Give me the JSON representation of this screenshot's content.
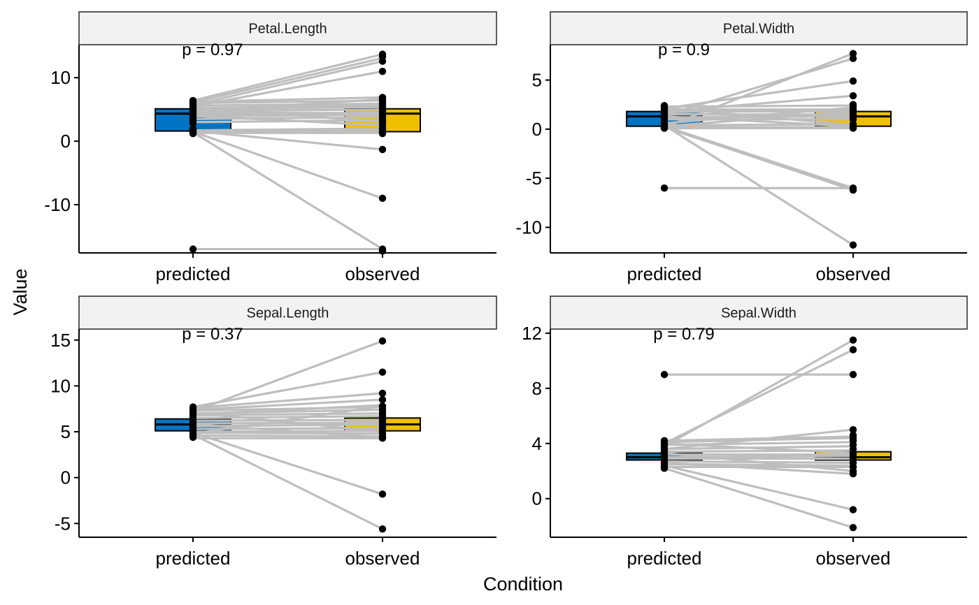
{
  "chart_data": {
    "type": "box",
    "xlabel": "Condition",
    "ylabel": "Value",
    "categories": [
      "predicted",
      "observed"
    ],
    "colors": {
      "predicted": "#0073C2",
      "observed": "#EFC000",
      "line": "#BEBEBE",
      "point": "#000000",
      "strip": "#F2F2F2"
    },
    "panels": [
      {
        "name": "Petal.Length",
        "p_label": "p = 0.97",
        "ylim": [
          -17.6,
          15.2
        ],
        "yticks": [
          10,
          0,
          -10
        ],
        "box_predicted": {
          "q1": 1.6,
          "median": 4.35,
          "q3": 5.1
        },
        "box_observed": {
          "q1": 1.5,
          "median": 4.35,
          "q3": 5.1
        },
        "lines": [
          [
            -17,
            -17
          ],
          [
            1.4,
            -17
          ],
          [
            1.5,
            -9
          ],
          [
            1.6,
            -1.3
          ],
          [
            6.4,
            13.7
          ],
          [
            6.1,
            13.1
          ],
          [
            5.7,
            12.6
          ],
          [
            5.5,
            11.0
          ],
          [
            1.3,
            1.3
          ],
          [
            1.4,
            1.5
          ],
          [
            1.5,
            1.6
          ],
          [
            1.7,
            2.0
          ],
          [
            3.0,
            3.3
          ],
          [
            3.5,
            3.8
          ],
          [
            3.9,
            4.2
          ],
          [
            4.2,
            4.5
          ],
          [
            4.5,
            4.4
          ],
          [
            4.7,
            5.0
          ],
          [
            5.0,
            5.4
          ],
          [
            5.2,
            5.6
          ],
          [
            5.6,
            5.9
          ],
          [
            6.0,
            6.4
          ],
          [
            6.2,
            6.9
          ],
          [
            4.0,
            2.5
          ],
          [
            5.4,
            3.0
          ],
          [
            4.8,
            6.6
          ]
        ],
        "points_predicted": [
          1.2,
          1.3,
          1.4,
          1.5,
          1.6,
          1.7,
          1.9,
          2.8,
          3.0,
          3.3,
          3.6,
          3.9,
          4.1,
          4.4,
          4.6,
          4.8,
          5.0,
          5.2,
          5.4,
          5.6,
          5.8,
          6.0,
          6.2,
          6.4,
          -17
        ],
        "points_observed": [
          13.7,
          13.3,
          12.6,
          11.0,
          -1.3,
          -9.0,
          -17.0,
          -17.3,
          1.2,
          1.4,
          1.6,
          2.0,
          2.5,
          3.0,
          3.3,
          3.6,
          3.9,
          4.2,
          4.4,
          4.7,
          5.0,
          5.3,
          5.6,
          5.9,
          6.3,
          6.6,
          6.9
        ]
      },
      {
        "name": "Petal.Width",
        "p_label": "p = 0.9",
        "ylim": [
          -12.6,
          8.6
        ],
        "yticks": [
          5,
          0,
          -5,
          -10
        ],
        "box_predicted": {
          "q1": 0.3,
          "median": 1.3,
          "q3": 1.8
        },
        "box_observed": {
          "q1": 0.3,
          "median": 1.3,
          "q3": 1.8
        },
        "lines": [
          [
            -6,
            -6
          ],
          [
            0.2,
            -6.2
          ],
          [
            0.3,
            -6.0
          ],
          [
            0.4,
            -11.8
          ],
          [
            0.2,
            7.7
          ],
          [
            1.4,
            7.2
          ],
          [
            2.1,
            4.9
          ],
          [
            1.8,
            3.4
          ],
          [
            0.1,
            0.1
          ],
          [
            0.2,
            0.2
          ],
          [
            0.4,
            0.5
          ],
          [
            1.0,
            1.0
          ],
          [
            1.2,
            1.3
          ],
          [
            1.5,
            1.5
          ],
          [
            1.8,
            1.8
          ],
          [
            2.0,
            2.0
          ],
          [
            2.3,
            2.4
          ],
          [
            0.6,
            2.2
          ],
          [
            2.2,
            0.4
          ],
          [
            1.6,
            1.2
          ],
          [
            0.3,
            1.8
          ],
          [
            1.3,
            0.3
          ]
        ],
        "points_predicted": [
          0.1,
          0.2,
          0.3,
          0.4,
          0.6,
          1.0,
          1.2,
          1.3,
          1.5,
          1.7,
          1.8,
          2.0,
          2.2,
          2.4,
          -6.0
        ],
        "points_observed": [
          7.7,
          7.2,
          4.9,
          3.4,
          -6.0,
          -6.2,
          -11.8,
          0.1,
          0.2,
          0.3,
          0.5,
          1.0,
          1.3,
          1.5,
          1.8,
          2.0,
          2.3,
          2.5
        ]
      },
      {
        "name": "Sepal.Length",
        "p_label": "p = 0.37",
        "ylim": [
          -6.5,
          16.2
        ],
        "yticks": [
          15,
          10,
          5,
          0,
          -5
        ],
        "box_predicted": {
          "q1": 5.1,
          "median": 5.8,
          "q3": 6.4
        },
        "box_observed": {
          "q1": 5.1,
          "median": 5.8,
          "q3": 6.5
        },
        "lines": [
          [
            4.7,
            -5.6
          ],
          [
            4.9,
            -1.8
          ],
          [
            7.2,
            14.9
          ],
          [
            7.7,
            11.5
          ],
          [
            7.6,
            9.2
          ],
          [
            7.4,
            8.5
          ],
          [
            6.9,
            7.9
          ],
          [
            4.3,
            4.3
          ],
          [
            4.6,
            4.5
          ],
          [
            4.9,
            4.8
          ],
          [
            5.0,
            5.1
          ],
          [
            5.3,
            5.4
          ],
          [
            5.6,
            5.8
          ],
          [
            5.9,
            6.0
          ],
          [
            6.2,
            6.3
          ],
          [
            6.5,
            6.7
          ],
          [
            6.8,
            7.0
          ],
          [
            7.0,
            7.4
          ],
          [
            7.3,
            7.7
          ],
          [
            5.8,
            4.4
          ],
          [
            7.1,
            5.0
          ],
          [
            4.8,
            7.8
          ]
        ],
        "points_predicted": [
          4.4,
          4.6,
          4.8,
          5.0,
          5.2,
          5.4,
          5.6,
          5.8,
          6.0,
          6.2,
          6.4,
          6.6,
          6.8,
          7.0,
          7.2,
          7.4,
          7.7
        ],
        "points_observed": [
          14.9,
          11.5,
          9.2,
          8.5,
          -1.8,
          -5.6,
          4.3,
          4.5,
          4.8,
          5.1,
          5.4,
          5.7,
          6.0,
          6.3,
          6.6,
          6.9,
          7.2,
          7.5,
          7.8
        ]
      },
      {
        "name": "Sepal.Width",
        "p_label": "p = 0.79",
        "ylim": [
          -2.8,
          12.3
        ],
        "yticks": [
          12,
          8,
          4,
          0
        ],
        "box_predicted": {
          "q1": 2.8,
          "median": 3.0,
          "q3": 3.3
        },
        "box_observed": {
          "q1": 2.8,
          "median": 3.0,
          "q3": 3.4
        },
        "lines": [
          [
            9,
            9
          ],
          [
            2.2,
            -2.1
          ],
          [
            2.4,
            -0.8
          ],
          [
            3.8,
            11.5
          ],
          [
            4.0,
            10.8
          ],
          [
            3.6,
            5.0
          ],
          [
            4.2,
            4.5
          ],
          [
            2.3,
            2.3
          ],
          [
            2.5,
            2.4
          ],
          [
            2.7,
            2.6
          ],
          [
            2.9,
            2.9
          ],
          [
            3.0,
            3.1
          ],
          [
            3.2,
            3.2
          ],
          [
            3.4,
            3.5
          ],
          [
            3.6,
            3.8
          ],
          [
            3.9,
            4.1
          ],
          [
            4.1,
            4.4
          ],
          [
            2.6,
            1.8
          ],
          [
            3.3,
            2.0
          ],
          [
            4.0,
            3.3
          ]
        ],
        "points_predicted": [
          2.2,
          2.4,
          2.6,
          2.8,
          3.0,
          3.2,
          3.4,
          3.6,
          3.8,
          4.0,
          4.2,
          9.0
        ],
        "points_observed": [
          11.5,
          10.8,
          9.0,
          5.0,
          4.6,
          -0.8,
          -2.1,
          1.8,
          2.0,
          2.3,
          2.6,
          2.9,
          3.1,
          3.3,
          3.6,
          3.9,
          4.2,
          4.4
        ]
      }
    ]
  }
}
